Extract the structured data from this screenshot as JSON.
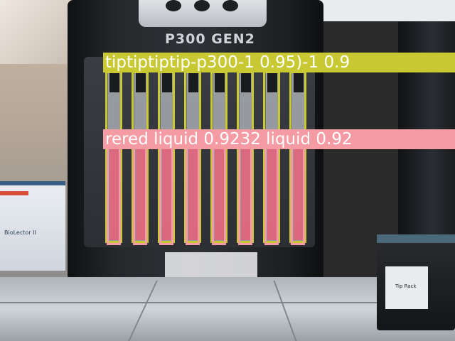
{
  "pipette": {
    "model_label": "P300 GEN2"
  },
  "labware": {
    "side_label": "BioLector II",
    "tip_box_label": "Tip Rack"
  },
  "detections": {
    "tip_label_text": "tiptiptiptip-p300-1 0.95)-1 0.9",
    "liquid_label_text": "rered liquid 0.9232 liquid 0.92",
    "tip_color": "#c8c832",
    "liquid_color": "#f49ba3",
    "tip_count": 8,
    "liquid_count": 8
  },
  "colors": {
    "liquid_pink": "#e8607a",
    "reservoir_liquid": "#e03a5a",
    "deck_metal": "#b9bec4",
    "pipette_body": "#1c1c1e"
  }
}
